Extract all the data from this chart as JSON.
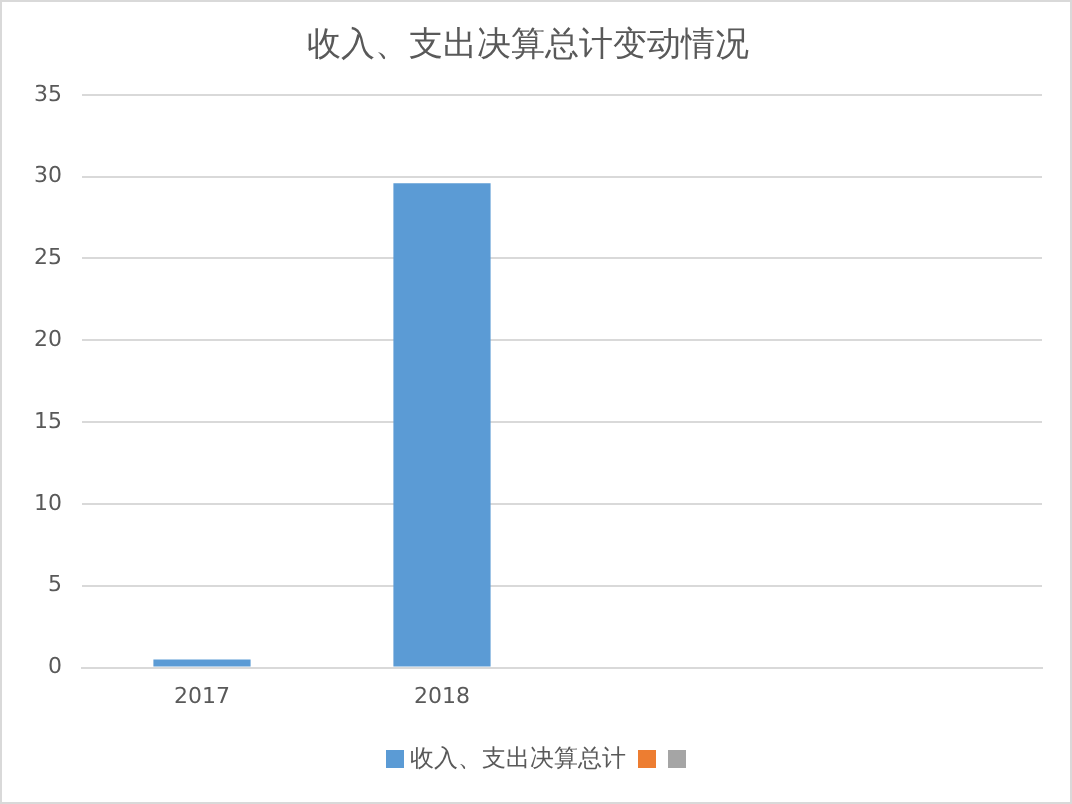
{
  "chart_data": {
    "type": "bar",
    "title": "收入、支出决算总计变动情况",
    "categories": [
      "2017",
      "2018",
      null,
      null
    ],
    "series": [
      {
        "name": "收入、支出决算总计",
        "color": "#5b9bd5",
        "values": [
          0.5,
          29.6,
          null,
          null
        ]
      },
      {
        "color": "#ed7d31",
        "values": [
          null,
          null,
          null,
          null
        ]
      },
      {
        "color": "#a5a5a5",
        "values": [
          null,
          null,
          null,
          null
        ]
      }
    ],
    "ylim": [
      0,
      35
    ],
    "yticks": [
      0,
      5,
      10,
      15,
      20,
      25,
      30,
      35
    ],
    "grid": "y",
    "legend": "bottom"
  }
}
